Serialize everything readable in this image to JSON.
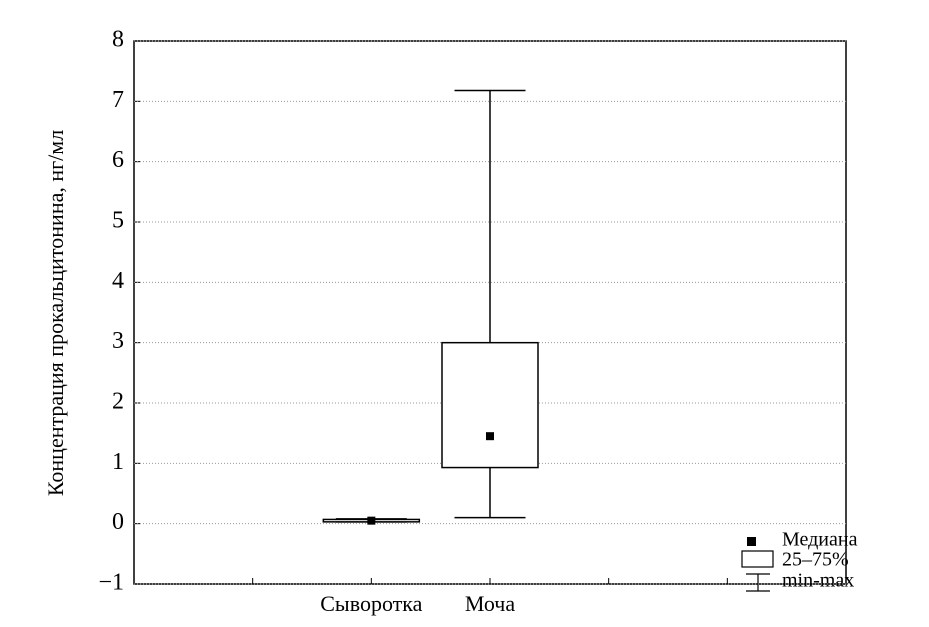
{
  "chart_data": {
    "type": "box",
    "y_label": "Концентрация прокальцитонина, нг/мл",
    "categories": [
      null,
      "Сыворотка",
      "Моча",
      null,
      null
    ],
    "min": [
      null,
      0.03,
      0.1,
      null,
      null
    ],
    "q1": [
      null,
      0.03,
      0.93,
      null,
      null
    ],
    "median": [
      null,
      0.05,
      1.45,
      null,
      null
    ],
    "q3": [
      null,
      0.07,
      3.0,
      null,
      null
    ],
    "max": [
      null,
      0.08,
      7.18,
      null,
      null
    ],
    "legend": {
      "median": "Медиана",
      "box": "25–75%",
      "whisker": "min-max"
    },
    "ylim": [
      -1,
      8
    ],
    "yticks": [
      {
        "value": -1,
        "label": "−1"
      },
      0,
      1,
      2,
      3,
      4,
      5,
      6,
      7,
      8
    ],
    "grid": true,
    "color": "#000000"
  }
}
